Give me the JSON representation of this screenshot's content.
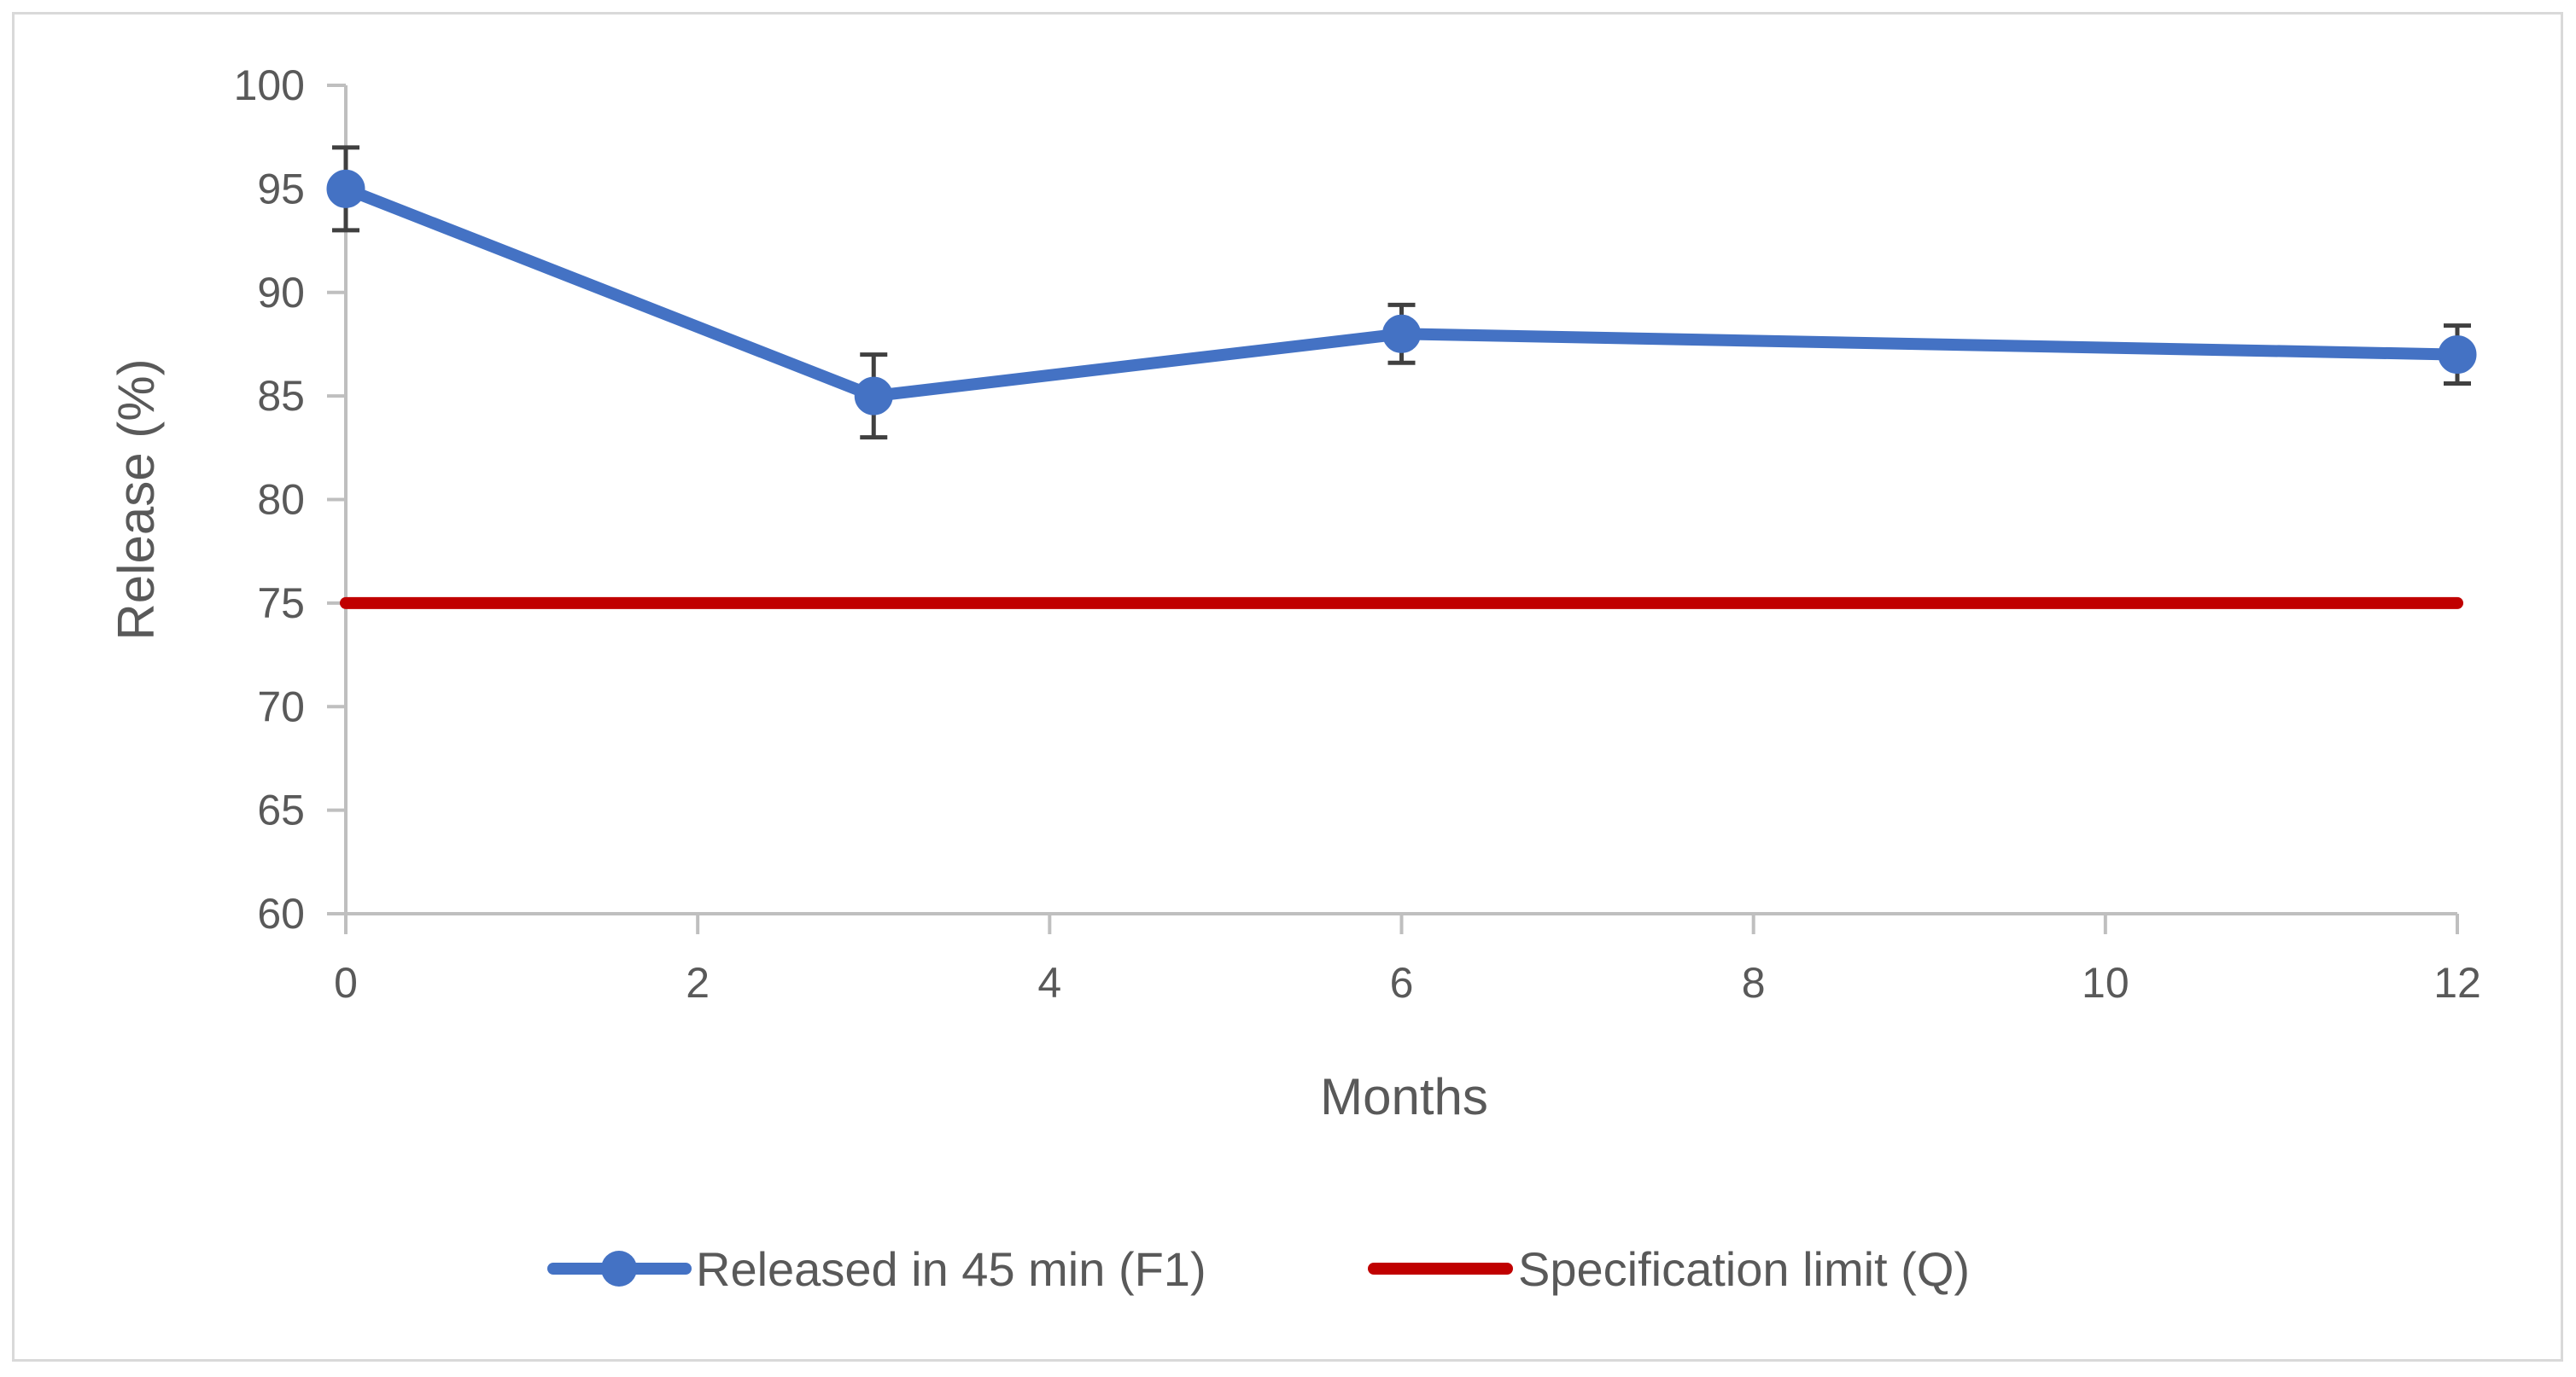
{
  "chart_data": {
    "type": "line",
    "title": "",
    "xlabel": "Months",
    "ylabel": "Release (%)",
    "xlim": [
      0,
      12
    ],
    "ylim": [
      60,
      100
    ],
    "x_ticks": [
      0,
      2,
      4,
      6,
      8,
      10,
      12
    ],
    "y_ticks": [
      60,
      65,
      70,
      75,
      80,
      85,
      90,
      95,
      100
    ],
    "grid": false,
    "legend_position": "bottom",
    "series": [
      {
        "name": "Released in 45 min (F1)",
        "color": "#4472c4",
        "marker": "circle",
        "x": [
          0,
          3,
          6,
          12
        ],
        "y": [
          95,
          85,
          88,
          87
        ],
        "error": [
          2,
          2,
          1.4,
          1.4
        ]
      },
      {
        "name": "Specification limit (Q)",
        "color": "#c00000",
        "marker": "none",
        "x": [
          0,
          12
        ],
        "y": [
          75,
          75
        ]
      }
    ],
    "axis_color": "#bfbfbf",
    "errorbar_color": "#404040"
  }
}
